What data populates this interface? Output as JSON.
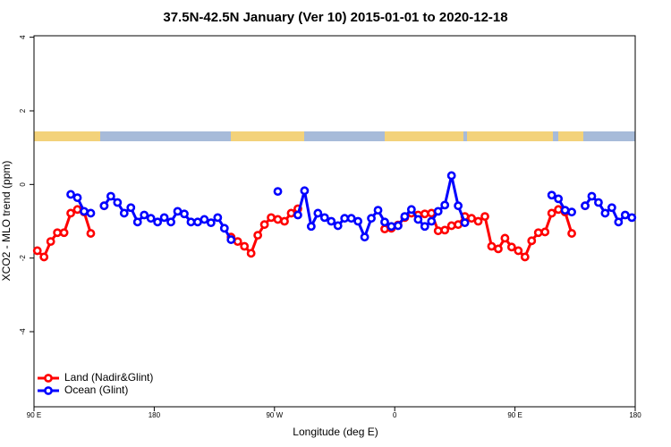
{
  "chart_data": {
    "type": "line",
    "title": "37.5N-42.5N January (Ver 10)   2015-01-01 to 2020-12-18",
    "x_label": "Longitude (deg E)",
    "y_label": "XCO2 - MLO trend (ppm)",
    "x": [
      92.5,
      97.5,
      102.5,
      107.5,
      112.5,
      117.5,
      122.5,
      127.5,
      132.5,
      137.5,
      142.5,
      147.5,
      152.5,
      157.5,
      162.5,
      167.5,
      172.5,
      177.5,
      182.5,
      187.5,
      192.5,
      197.5,
      202.5,
      207.5,
      212.5,
      217.5,
      222.5,
      227.5,
      232.5,
      237.5,
      242.5,
      247.5,
      252.5,
      257.5,
      262.5,
      267.5,
      272.5,
      277.5,
      282.5,
      287.5,
      292.5,
      297.5,
      302.5,
      307.5,
      312.5,
      317.5,
      322.5,
      327.5,
      332.5,
      337.5,
      342.5,
      347.5,
      352.5,
      357.5,
      362.5,
      367.5,
      372.5,
      377.5,
      382.5,
      387.5,
      392.5,
      397.5,
      402.5,
      407.5,
      412.5,
      417.5,
      422.5,
      427.5,
      432.5,
      437.5,
      442.5,
      447.5,
      452.5,
      457.5,
      462.5,
      467.5,
      472.5,
      477.5,
      482.5,
      487.5,
      492.5,
      497.5,
      502.5,
      507.5,
      512.5,
      517.5,
      522.5,
      527.5,
      532.5,
      537.5
    ],
    "series": [
      {
        "name": "Land (Nadir&Glint)",
        "color": "#ff0000",
        "values": [
          -1.8,
          -1.97,
          -1.55,
          -1.31,
          -1.31,
          -0.78,
          -0.68,
          -0.75,
          -1.33,
          null,
          -0.58,
          null,
          null,
          null,
          null,
          null,
          null,
          null,
          null,
          null,
          null,
          null,
          null,
          null,
          null,
          null,
          null,
          null,
          null,
          -1.43,
          -1.55,
          -1.68,
          -1.87,
          -1.38,
          -1.09,
          -0.9,
          -0.95,
          -1.0,
          -0.78,
          -0.66,
          null,
          null,
          null,
          null,
          null,
          null,
          null,
          null,
          null,
          null,
          null,
          null,
          -1.21,
          -1.19,
          -1.1,
          -0.9,
          -0.78,
          -0.83,
          -0.8,
          -0.78,
          -1.26,
          -1.24,
          -1.12,
          -1.09,
          -0.87,
          -0.92,
          -1.0,
          -0.87,
          -1.68,
          -1.75,
          -1.46,
          -1.7,
          -1.8,
          -1.97,
          -1.53,
          -1.31,
          -1.29,
          -0.78,
          -0.68,
          -0.75,
          -1.33,
          null,
          -0.58,
          null,
          null,
          null,
          null,
          null,
          null,
          null
        ]
      },
      {
        "name": "Ocean (Glint)",
        "color": "#0000ff",
        "values": [
          null,
          null,
          null,
          null,
          null,
          -0.27,
          -0.36,
          -0.73,
          -0.78,
          null,
          -0.58,
          -0.32,
          -0.49,
          -0.78,
          -0.63,
          -1.02,
          -0.83,
          -0.92,
          -1.02,
          -0.9,
          -1.02,
          -0.73,
          -0.8,
          -1.02,
          -1.02,
          -0.95,
          -1.04,
          -0.9,
          -1.19,
          -1.5,
          null,
          null,
          null,
          null,
          null,
          null,
          -0.19,
          null,
          null,
          -0.83,
          -0.17,
          -1.14,
          -0.78,
          -0.9,
          -1.0,
          -1.12,
          -0.92,
          -0.92,
          -1.0,
          -1.43,
          -0.92,
          -0.7,
          -1.02,
          -1.14,
          -1.12,
          -0.87,
          -0.68,
          -0.95,
          -1.14,
          -1.0,
          -0.73,
          -0.56,
          0.24,
          -0.58,
          -1.04,
          null,
          null,
          null,
          null,
          null,
          null,
          null,
          null,
          null,
          null,
          null,
          null,
          -0.29,
          -0.39,
          -0.7,
          -0.75,
          null,
          -0.58,
          -0.32,
          -0.49,
          -0.78,
          -0.63,
          -1.02,
          -0.83,
          -0.9
        ]
      }
    ],
    "xlim": [
      90,
      540
    ],
    "xticks": [
      {
        "value": 90,
        "label": "90 E"
      },
      180,
      {
        "value": 270,
        "label": "90 W"
      },
      {
        "value": 360,
        "label": "0"
      },
      {
        "value": 450,
        "label": "90 E"
      },
      {
        "value": 540,
        "label": "180"
      }
    ],
    "ylim": [
      -6.04,
      4.04
    ],
    "yticks": [
      -4,
      -2,
      0,
      2,
      4
    ],
    "legend": "bottomleft"
  }
}
